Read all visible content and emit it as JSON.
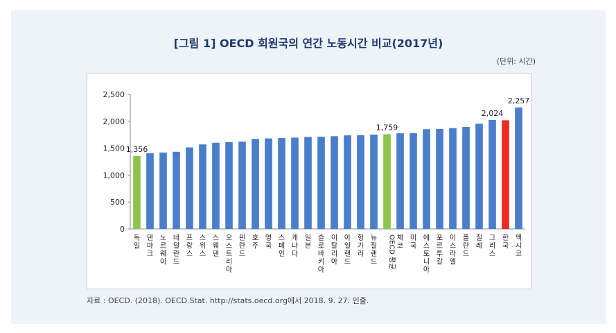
{
  "title": "[그림 1] OECD 회원국의 연간 노동시간 비교(2017년)",
  "unit_label": "(단위: 시간)",
  "source": "자료 : OECD. (2018). OECD.Stat. http://stats.oecd.org에서 2018. 9. 27. 인출.",
  "colors": {
    "default": "#4a7ecb",
    "highlight_green": "#8dc44c",
    "highlight_red": "#ee2a23"
  },
  "chart_data": {
    "type": "bar",
    "title": "",
    "xlabel": "",
    "ylabel": "",
    "ylim": [
      0,
      2500
    ],
    "yticks": [
      "0",
      "500",
      "1,000",
      "1,500",
      "2,000",
      "2,500"
    ],
    "grid": false,
    "categories": [
      "독일",
      "덴마크",
      "노르웨이",
      "네덜란드",
      "프랑스",
      "스위스",
      "스웨덴",
      "오스트리아",
      "핀란드",
      "호주",
      "영국",
      "스페인",
      "캐나다",
      "일본",
      "슬로바키아",
      "이탈리아",
      "아일랜드",
      "헝가리",
      "뉴질랜드",
      "OECD 평균",
      "체코",
      "미국",
      "에스토니아",
      "포르투갈",
      "이스라엘",
      "폴란드",
      "칠레",
      "그리스",
      "한국",
      "멕시코"
    ],
    "values": [
      1356,
      1408,
      1419,
      1433,
      1514,
      1570,
      1601,
      1613,
      1623,
      1673,
      1681,
      1687,
      1696,
      1709,
      1714,
      1723,
      1738,
      1741,
      1752,
      1759,
      1777,
      1780,
      1852,
      1857,
      1873,
      1895,
      1954,
      2024,
      2018,
      2257
    ],
    "highlight": {
      "독일": "green",
      "OECD 평균": "green",
      "한국": "red"
    },
    "data_labels": [
      {
        "category": "독일",
        "text": "1,356"
      },
      {
        "category": "OECD 평균",
        "text": "1,759"
      },
      {
        "category": "그리스",
        "text": "2,024"
      },
      {
        "category": "멕시코",
        "text": "2,257"
      }
    ]
  }
}
